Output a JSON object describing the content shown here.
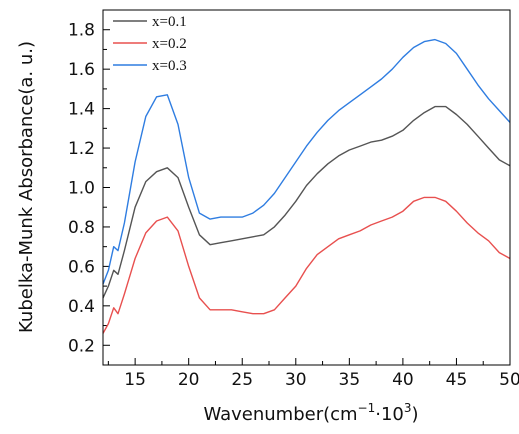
{
  "chart_data": {
    "type": "line",
    "xlabel": "Wavenumber(cm",
    "xlabel_sup1": "−1",
    "xlabel_mid": "·10",
    "xlabel_sup2": "3",
    "xlabel_end": ")",
    "ylabel": "Kubelka-Munk Absorbance(a. u.)",
    "xlim": [
      12,
      50
    ],
    "ylim": [
      0.1,
      1.9
    ],
    "xticks": [
      15,
      20,
      25,
      30,
      35,
      40,
      45,
      50
    ],
    "yticks": [
      0.2,
      0.4,
      0.6,
      0.8,
      1.0,
      1.2,
      1.4,
      1.6,
      1.8
    ],
    "ytick_labels": [
      "0.2",
      "0.4",
      "0.6",
      "0.8",
      "1.0",
      "1.2",
      "1.4",
      "1.6",
      "1.8"
    ],
    "grid": false,
    "legend": "top-left",
    "series": [
      {
        "name": "x=0.1",
        "color": "#555555",
        "points": [
          [
            12.0,
            0.44
          ],
          [
            12.5,
            0.5
          ],
          [
            13.0,
            0.58
          ],
          [
            13.4,
            0.56
          ],
          [
            14.0,
            0.68
          ],
          [
            15.0,
            0.9
          ],
          [
            16.0,
            1.03
          ],
          [
            17.0,
            1.08
          ],
          [
            18.0,
            1.1
          ],
          [
            19.0,
            1.05
          ],
          [
            20.0,
            0.9
          ],
          [
            21.0,
            0.76
          ],
          [
            22.0,
            0.71
          ],
          [
            23.0,
            0.72
          ],
          [
            24.0,
            0.73
          ],
          [
            25.0,
            0.74
          ],
          [
            26.0,
            0.75
          ],
          [
            27.0,
            0.76
          ],
          [
            28.0,
            0.8
          ],
          [
            29.0,
            0.86
          ],
          [
            30.0,
            0.93
          ],
          [
            31.0,
            1.01
          ],
          [
            32.0,
            1.07
          ],
          [
            33.0,
            1.12
          ],
          [
            34.0,
            1.16
          ],
          [
            35.0,
            1.19
          ],
          [
            36.0,
            1.21
          ],
          [
            37.0,
            1.23
          ],
          [
            38.0,
            1.24
          ],
          [
            39.0,
            1.26
          ],
          [
            40.0,
            1.29
          ],
          [
            41.0,
            1.34
          ],
          [
            42.0,
            1.38
          ],
          [
            43.0,
            1.41
          ],
          [
            44.0,
            1.41
          ],
          [
            45.0,
            1.37
          ],
          [
            46.0,
            1.32
          ],
          [
            47.0,
            1.26
          ],
          [
            48.0,
            1.2
          ],
          [
            49.0,
            1.14
          ],
          [
            50.0,
            1.11
          ]
        ]
      },
      {
        "name": "x=0.2",
        "color": "#e8504f",
        "points": [
          [
            12.0,
            0.26
          ],
          [
            12.5,
            0.31
          ],
          [
            13.0,
            0.39
          ],
          [
            13.4,
            0.36
          ],
          [
            14.0,
            0.46
          ],
          [
            15.0,
            0.64
          ],
          [
            16.0,
            0.77
          ],
          [
            17.0,
            0.83
          ],
          [
            18.0,
            0.85
          ],
          [
            19.0,
            0.78
          ],
          [
            20.0,
            0.6
          ],
          [
            21.0,
            0.44
          ],
          [
            22.0,
            0.38
          ],
          [
            23.0,
            0.38
          ],
          [
            24.0,
            0.38
          ],
          [
            25.0,
            0.37
          ],
          [
            26.0,
            0.36
          ],
          [
            27.0,
            0.36
          ],
          [
            28.0,
            0.38
          ],
          [
            29.0,
            0.44
          ],
          [
            30.0,
            0.5
          ],
          [
            31.0,
            0.59
          ],
          [
            32.0,
            0.66
          ],
          [
            33.0,
            0.7
          ],
          [
            34.0,
            0.74
          ],
          [
            35.0,
            0.76
          ],
          [
            36.0,
            0.78
          ],
          [
            37.0,
            0.81
          ],
          [
            38.0,
            0.83
          ],
          [
            39.0,
            0.85
          ],
          [
            40.0,
            0.88
          ],
          [
            41.0,
            0.93
          ],
          [
            42.0,
            0.95
          ],
          [
            43.0,
            0.95
          ],
          [
            44.0,
            0.93
          ],
          [
            45.0,
            0.88
          ],
          [
            46.0,
            0.82
          ],
          [
            47.0,
            0.77
          ],
          [
            48.0,
            0.73
          ],
          [
            49.0,
            0.67
          ],
          [
            50.0,
            0.64
          ]
        ]
      },
      {
        "name": "x=0.3",
        "color": "#2f7de1",
        "points": [
          [
            12.0,
            0.51
          ],
          [
            12.5,
            0.58
          ],
          [
            13.0,
            0.7
          ],
          [
            13.4,
            0.68
          ],
          [
            14.0,
            0.82
          ],
          [
            15.0,
            1.13
          ],
          [
            16.0,
            1.36
          ],
          [
            17.0,
            1.46
          ],
          [
            18.0,
            1.47
          ],
          [
            19.0,
            1.32
          ],
          [
            20.0,
            1.05
          ],
          [
            21.0,
            0.87
          ],
          [
            22.0,
            0.84
          ],
          [
            23.0,
            0.85
          ],
          [
            24.0,
            0.85
          ],
          [
            25.0,
            0.85
          ],
          [
            26.0,
            0.87
          ],
          [
            27.0,
            0.91
          ],
          [
            28.0,
            0.97
          ],
          [
            29.0,
            1.05
          ],
          [
            30.0,
            1.13
          ],
          [
            31.0,
            1.21
          ],
          [
            32.0,
            1.28
          ],
          [
            33.0,
            1.34
          ],
          [
            34.0,
            1.39
          ],
          [
            35.0,
            1.43
          ],
          [
            36.0,
            1.47
          ],
          [
            37.0,
            1.51
          ],
          [
            38.0,
            1.55
          ],
          [
            39.0,
            1.6
          ],
          [
            40.0,
            1.66
          ],
          [
            41.0,
            1.71
          ],
          [
            42.0,
            1.74
          ],
          [
            43.0,
            1.75
          ],
          [
            44.0,
            1.73
          ],
          [
            45.0,
            1.68
          ],
          [
            46.0,
            1.6
          ],
          [
            47.0,
            1.52
          ],
          [
            48.0,
            1.45
          ],
          [
            49.0,
            1.39
          ],
          [
            50.0,
            1.33
          ]
        ]
      }
    ]
  }
}
